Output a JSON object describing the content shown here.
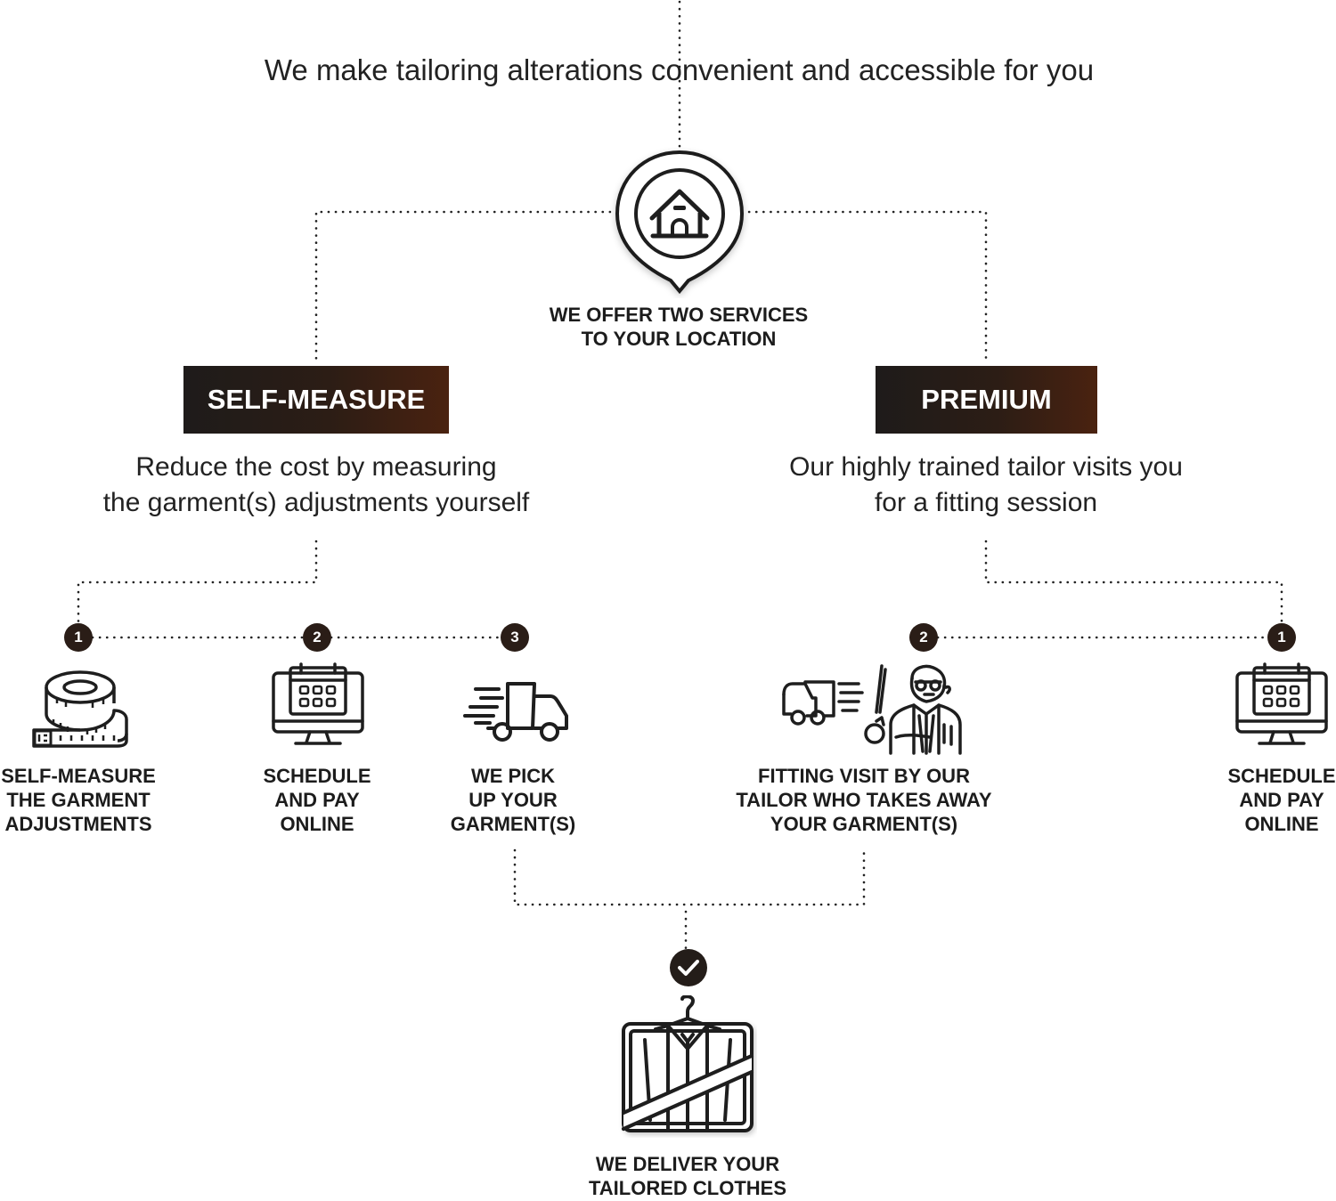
{
  "header": {
    "headline": "We make tailoring alterations convenient and accessible for you"
  },
  "intro": {
    "icon": "house-location-pin-icon",
    "line1": "WE OFFER TWO SERVICES",
    "line2": "TO YOUR LOCATION"
  },
  "self_measure": {
    "title": "SELF-MEASURE",
    "desc_line1": "Reduce the cost by measuring",
    "desc_line2": "the garment(s) adjustments yourself",
    "steps": [
      {
        "number": "1",
        "icon": "measuring-tape-icon",
        "label": [
          "SELF-MEASURE",
          "THE GARMENT",
          "ADJUSTMENTS"
        ]
      },
      {
        "number": "2",
        "icon": "calendar-monitor-icon",
        "label": [
          "SCHEDULE",
          "AND PAY",
          "ONLINE"
        ]
      },
      {
        "number": "3",
        "icon": "delivery-truck-icon",
        "label": [
          "WE PICK",
          "UP YOUR",
          "GARMENT(S)"
        ]
      }
    ]
  },
  "premium": {
    "title": "PREMIUM",
    "desc_line1": "Our highly trained tailor visits you",
    "desc_line2": "for a fitting session",
    "steps": [
      {
        "number": "1",
        "icon": "calendar-monitor-icon",
        "label": [
          "SCHEDULE",
          "AND PAY",
          "ONLINE"
        ]
      },
      {
        "number": "2",
        "icon": "truck-and-tailor-icon",
        "label": [
          "FITTING VISIT BY OUR",
          "TAILOR WHO TAKES AWAY",
          "YOUR GARMENT(S)"
        ]
      }
    ]
  },
  "final": {
    "check_icon": "checkmark-icon",
    "icon": "garment-bag-suit-icon",
    "line1": "WE DELIVER YOUR",
    "line2": "TAILORED CLOTHES"
  },
  "colors": {
    "badge_dark": "#1e1b1a",
    "badge_brown": "#4a2210",
    "number_dot": "#2a1d17",
    "text": "#1c1c1c"
  }
}
